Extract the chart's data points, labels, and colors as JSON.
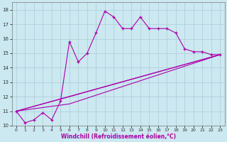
{
  "xlabel": "Windchill (Refroidissement éolien,°C)",
  "background_color": "#cce8f0",
  "grid_color": "#aaccdd",
  "line_color": "#aa00aa",
  "xlim": [
    -0.5,
    23.5
  ],
  "ylim": [
    10,
    18.5
  ],
  "xticks": [
    0,
    1,
    2,
    3,
    4,
    5,
    6,
    7,
    8,
    9,
    10,
    11,
    12,
    13,
    14,
    15,
    16,
    17,
    18,
    19,
    20,
    21,
    22,
    23
  ],
  "yticks": [
    10,
    11,
    12,
    13,
    14,
    15,
    16,
    17,
    18
  ],
  "line1_x": [
    0,
    1,
    2,
    3,
    4,
    5,
    6,
    7,
    8,
    9,
    10,
    11,
    12,
    13,
    14,
    15,
    16,
    17,
    18,
    19,
    20,
    21,
    22,
    23
  ],
  "line1_y": [
    11.0,
    10.2,
    10.4,
    10.9,
    10.4,
    11.7,
    15.8,
    14.4,
    15.0,
    16.4,
    17.9,
    17.5,
    16.7,
    16.7,
    17.5,
    16.7,
    16.7,
    16.7,
    16.4,
    15.3,
    15.1,
    15.1,
    14.9,
    14.9
  ],
  "line2_x": [
    0,
    23
  ],
  "line2_y": [
    11.0,
    14.9
  ],
  "line3_x": [
    0,
    6,
    23
  ],
  "line3_y": [
    11.0,
    11.5,
    14.9
  ],
  "line4_x": [
    0,
    6,
    23
  ],
  "line4_y": [
    11.0,
    12.0,
    14.9
  ]
}
